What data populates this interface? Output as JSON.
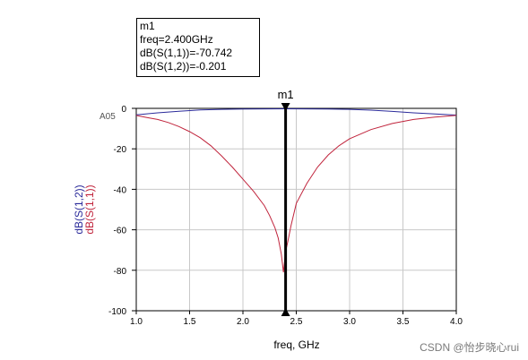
{
  "marker_box": {
    "name": "m1",
    "freq_line": "freq=2.400GHz",
    "s11_line": "dB(S(1,1))=-70.742",
    "s12_line": "dB(S(1,2))=-0.201"
  },
  "watermark": "CSDN @怡步晓心rui",
  "chart_data": {
    "type": "line",
    "xlabel": "freq, GHz",
    "xlim": [
      1.0,
      4.0
    ],
    "ylim": [
      -100,
      0
    ],
    "xticks": [
      "1.0",
      "1.5",
      "2.0",
      "2.5",
      "3.0",
      "3.5",
      "4.0"
    ],
    "yticks": [
      "0",
      "-20",
      "-40",
      "-60",
      "-80",
      "-100"
    ],
    "ytick_values": [
      0,
      -20,
      -40,
      -60,
      -80,
      -100
    ],
    "xtick_values": [
      1.0,
      1.5,
      2.0,
      2.5,
      3.0,
      3.5,
      4.0
    ],
    "corner_label": "A05",
    "grid": true,
    "series": [
      {
        "name": "dB(S(1,2))",
        "color": "#2a2a9a",
        "x": [
          1.0,
          1.2,
          1.4,
          1.6,
          1.8,
          2.0,
          2.2,
          2.4,
          2.6,
          2.8,
          3.0,
          3.2,
          3.4,
          3.6,
          3.8,
          4.0
        ],
        "y": [
          -3.2,
          -2.2,
          -1.4,
          -0.8,
          -0.5,
          -0.3,
          -0.25,
          -0.2,
          -0.25,
          -0.35,
          -0.5,
          -0.9,
          -1.5,
          -2.2,
          -2.8,
          -3.3
        ]
      },
      {
        "name": "dB(S(1,1))",
        "color": "#c0243c",
        "x": [
          1.0,
          1.1,
          1.2,
          1.3,
          1.4,
          1.5,
          1.6,
          1.7,
          1.8,
          1.9,
          2.0,
          2.1,
          2.2,
          2.25,
          2.3,
          2.33,
          2.36,
          2.38,
          2.4,
          2.42,
          2.45,
          2.5,
          2.6,
          2.7,
          2.8,
          2.9,
          3.0,
          3.2,
          3.4,
          3.6,
          3.8,
          4.0
        ],
        "y": [
          -3.5,
          -4.5,
          -5.5,
          -7.0,
          -9.0,
          -11.5,
          -14.5,
          -18.5,
          -23.5,
          -29.0,
          -35.0,
          -41.0,
          -48.0,
          -53.0,
          -59.0,
          -64.0,
          -72.0,
          -81.0,
          -70.7,
          -66.0,
          -58.0,
          -47.0,
          -37.0,
          -29.0,
          -23.0,
          -18.5,
          -15.0,
          -10.5,
          -7.5,
          -5.5,
          -4.3,
          -3.5
        ]
      }
    ],
    "marker": {
      "label": "m1",
      "x": 2.4
    }
  }
}
